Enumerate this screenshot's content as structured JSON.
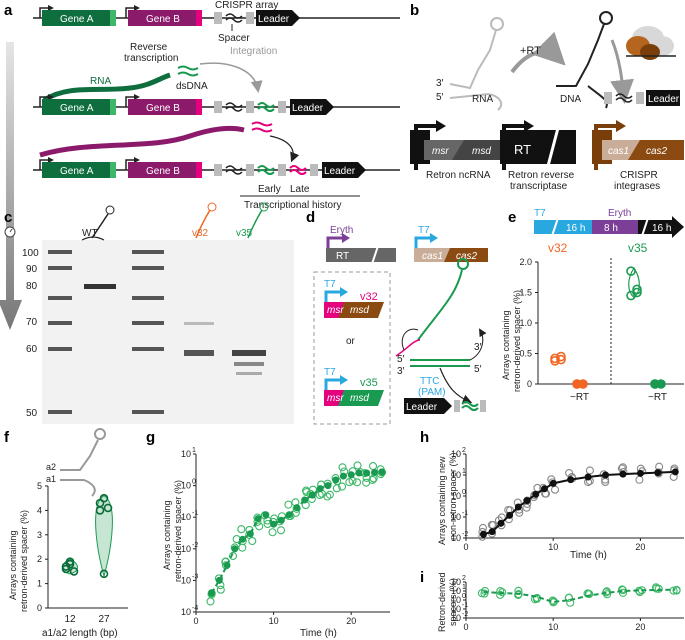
{
  "labels": {
    "a": "a",
    "b": "b",
    "c": "c",
    "d": "d",
    "e": "e",
    "f": "f",
    "g": "g",
    "h": "h",
    "i": "i"
  },
  "panel_a": {
    "gene_a": "Gene A",
    "gene_b": "Gene B",
    "crispr_array": "CRISPR array",
    "leader": "Leader",
    "spacer": "Spacer",
    "rna": "RNA",
    "reverse_transcription": "Reverse\ntranscription",
    "dsdna": "dsDNA",
    "integration": "Integration",
    "early": "Early",
    "late": "Late",
    "transcriptional_history": "Transcriptional history"
  },
  "panel_b": {
    "prime3": "3′",
    "prime5": "5′",
    "rna": "RNA",
    "plus_rt": "+RT",
    "dna": "DNA",
    "leader": "Leader",
    "msr": "msr",
    "msd": "msd",
    "rt": "RT",
    "cas1": "cas1",
    "cas2": "cas2",
    "retron_ncrna": "Retron ncRNA",
    "retron_rt_1": "Retron reverse",
    "retron_rt_2": "transcriptase",
    "crispr_int_1": "CRISPR",
    "crispr_int_2": "integrases"
  },
  "panel_c": {
    "ladder": [
      "100",
      "90",
      "80",
      "70",
      "60",
      "50"
    ],
    "wt": "WT",
    "v32": "v32",
    "v35": "v35"
  },
  "panel_d": {
    "eryth": "Eryth",
    "rt": "RT",
    "t7": "T7",
    "cas1": "cas1",
    "cas2": "cas2",
    "msr": "msr",
    "msd": "msd",
    "v32": "v32",
    "v35": "v35",
    "or": "or",
    "ttc": "TTC",
    "pam": "(PAM)",
    "leader": "Leader",
    "p3": "3′",
    "p5": "5′"
  },
  "panel_e": {
    "t7": "T7",
    "eryth": "Eryth",
    "h16a": "16 h",
    "h8": "8 h",
    "h16b": "16 h",
    "v32": "v32",
    "v35": "v35",
    "minus_rt_1": "−RT",
    "minus_rt_2": "−RT",
    "ylabel_1": "Arrays containing",
    "ylabel_2": "retron-derived spacer (%)",
    "yticks": [
      "0",
      "0.5",
      "1.0",
      "1.5",
      "2.0"
    ]
  },
  "panel_f": {
    "a2": "a2",
    "a1": "a1",
    "ylabel_1": "Arrays containing",
    "ylabel_2": "retron-derived spacer (%)",
    "xlabel": "a1/a2 length (bp)",
    "yticks": [
      "0",
      "1",
      "2",
      "3",
      "4",
      "5"
    ],
    "xticks": [
      "12",
      "27"
    ]
  },
  "panel_g": {
    "ylabel_1": "Arrays containing",
    "ylabel_2": "retron-derived spacer (%)",
    "xlabel": "Time (h)",
    "xticks": [
      "0",
      "10",
      "20"
    ]
  },
  "panel_h": {
    "ylabel_1": "Arrays containing new",
    "ylabel_2": "non-retron spacer (%)",
    "xlabel": "Time (h)",
    "xticks": [
      "0",
      "10",
      "20"
    ]
  },
  "panel_i": {
    "ylabel_1": "Retron-derived",
    "ylabel_2": "spacers (%)",
    "xticks": [
      "0",
      "10",
      "20"
    ]
  },
  "colors": {
    "green": "#1a9a50",
    "dgreen": "#0c6b3a",
    "magenta": "#e5007e",
    "purple": "#8b1a6b",
    "orange": "#f26522",
    "cyan": "#29a8e0",
    "violet": "#7b3f98",
    "brown": "#8b4a12",
    "tan": "#c9ad98",
    "grey": "#666666"
  },
  "chart_data": [
    {
      "type": "scatter",
      "title": "e",
      "series": [
        {
          "name": "v32",
          "x": [
            1,
            1,
            1,
            1
          ],
          "values": [
            0.42,
            0.45,
            0.38,
            0.4
          ]
        },
        {
          "name": "v32 −RT",
          "x": [
            2,
            2,
            2
          ],
          "values": [
            0,
            0,
            0
          ]
        },
        {
          "name": "v35",
          "x": [
            3,
            3,
            3,
            3
          ],
          "values": [
            1.85,
            1.5,
            1.45,
            1.55
          ]
        },
        {
          "name": "v35 −RT",
          "x": [
            4,
            4,
            4
          ],
          "values": [
            0,
            0,
            0
          ]
        }
      ],
      "ylim": [
        0,
        2
      ]
    },
    {
      "type": "scatter",
      "title": "f",
      "series": [
        {
          "name": "12",
          "x": [
            12,
            12,
            12,
            12,
            12
          ],
          "values": [
            1.7,
            1.9,
            1.5,
            1.6,
            1.8
          ]
        },
        {
          "name": "27",
          "x": [
            27,
            27,
            27,
            27,
            27
          ],
          "values": [
            4.3,
            4.5,
            4.1,
            4.0,
            1.4
          ]
        }
      ],
      "ylim": [
        0,
        5
      ]
    },
    {
      "type": "line",
      "title": "g",
      "yscale": "log",
      "x": [
        2,
        3,
        4,
        5,
        6,
        7,
        8,
        9,
        10,
        11,
        12,
        13,
        14,
        15,
        16,
        17,
        18,
        19,
        20,
        21,
        22,
        23,
        24
      ],
      "values": [
        0.0004,
        0.001,
        0.003,
        0.01,
        0.02,
        0.03,
        0.09,
        0.12,
        0.06,
        0.08,
        0.12,
        0.2,
        0.35,
        0.5,
        0.8,
        1.0,
        1.5,
        2.0,
        2.2,
        2.5,
        2.5,
        2.6,
        2.7
      ],
      "ylim": [
        0.0001,
        10
      ],
      "xlim": [
        0,
        25
      ]
    },
    {
      "type": "line",
      "title": "h",
      "yscale": "log",
      "x": [
        2,
        3,
        4,
        5,
        6,
        7,
        8,
        9,
        10,
        12,
        14,
        16,
        18,
        20,
        22,
        24
      ],
      "values": [
        0.015,
        0.02,
        0.05,
        0.12,
        0.3,
        0.6,
        1.2,
        2.2,
        4,
        6,
        8,
        10,
        11,
        12,
        13,
        14
      ],
      "ylim": [
        0.01,
        100
      ],
      "xlim": [
        0,
        25
      ]
    },
    {
      "type": "line",
      "title": "i",
      "yscale": "log",
      "x": [
        2,
        4,
        6,
        8,
        10,
        12,
        14,
        16,
        18,
        20,
        22,
        24
      ],
      "values": [
        8,
        6,
        5,
        2.5,
        0.6,
        1,
        3,
        6,
        10,
        12,
        13,
        14
      ],
      "ylim": [
        0.01,
        100
      ],
      "xlim": [
        0,
        25
      ]
    }
  ]
}
